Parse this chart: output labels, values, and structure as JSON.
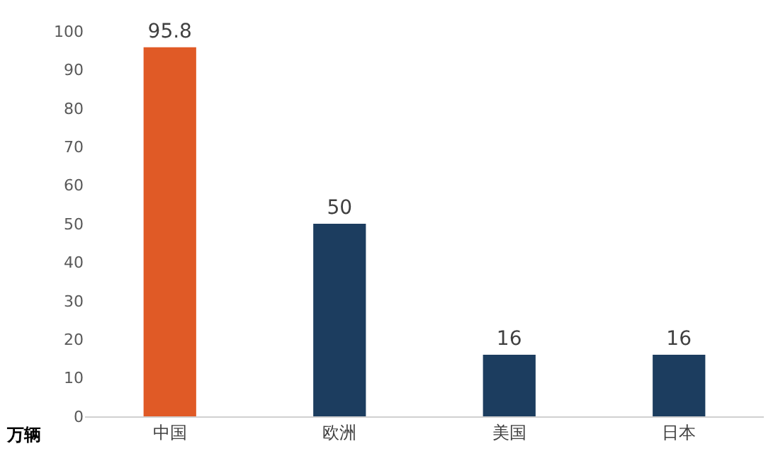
{
  "chart_data": {
    "type": "bar",
    "ylabel": "万辆",
    "categories": [
      "中国",
      "欧洲",
      "美国",
      "日本"
    ],
    "values": [
      95.8,
      50,
      16,
      16
    ],
    "colors": [
      "#e05a26",
      "#1c3d5f",
      "#1c3d5f",
      "#1c3d5f"
    ],
    "ylim": [
      0,
      100
    ],
    "yticks": [
      0,
      10,
      20,
      30,
      40,
      50,
      60,
      70,
      80,
      90,
      100
    ],
    "grid": false,
    "data_labels": true
  }
}
